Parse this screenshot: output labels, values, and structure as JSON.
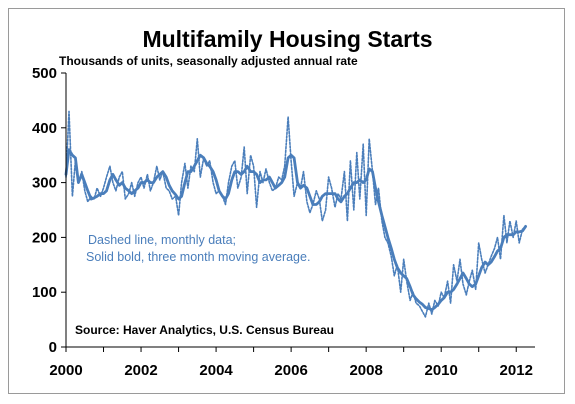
{
  "chart_data": {
    "type": "line",
    "title": "Multifamily Housing Starts",
    "subtitle": "Thousands of units, seasonally adjusted annual rate",
    "annotations": [
      "Dashed line, monthly data;",
      "Solid bold, three month moving average."
    ],
    "source": "Source:  Haver Analytics, U.S. Census Bureau",
    "xlim": [
      2000,
      2012.5
    ],
    "ylim": [
      0,
      500
    ],
    "x_ticks": [
      {
        "value": 2000,
        "label": "2000"
      },
      {
        "value": 2002,
        "label": "2002"
      },
      {
        "value": 2004,
        "label": "2004"
      },
      {
        "value": 2006,
        "label": "2006"
      },
      {
        "value": 2008,
        "label": "2008"
      },
      {
        "value": 2010,
        "label": "2010"
      },
      {
        "value": 2012,
        "label": "2012"
      }
    ],
    "y_ticks": [
      {
        "value": 0,
        "label": "0"
      },
      {
        "value": 100,
        "label": "100"
      },
      {
        "value": 200,
        "label": "200"
      },
      {
        "value": 300,
        "label": "300"
      },
      {
        "value": 400,
        "label": "400"
      },
      {
        "value": 500,
        "label": "500"
      }
    ],
    "grid": false,
    "colors": {
      "series": "#4a7ebb",
      "axis": "#000000",
      "frame": "#9a9a9a"
    },
    "x": [
      2000.0,
      2000.08,
      2000.17,
      2000.25,
      2000.33,
      2000.42,
      2000.5,
      2000.58,
      2000.67,
      2000.75,
      2000.83,
      2000.92,
      2001.0,
      2001.08,
      2001.17,
      2001.25,
      2001.33,
      2001.42,
      2001.5,
      2001.58,
      2001.67,
      2001.75,
      2001.83,
      2001.92,
      2002.0,
      2002.08,
      2002.17,
      2002.25,
      2002.33,
      2002.42,
      2002.5,
      2002.58,
      2002.67,
      2002.75,
      2002.83,
      2002.92,
      2003.0,
      2003.08,
      2003.17,
      2003.25,
      2003.33,
      2003.42,
      2003.5,
      2003.58,
      2003.67,
      2003.75,
      2003.83,
      2003.92,
      2004.0,
      2004.08,
      2004.17,
      2004.25,
      2004.33,
      2004.42,
      2004.5,
      2004.58,
      2004.67,
      2004.75,
      2004.83,
      2004.92,
      2005.0,
      2005.08,
      2005.17,
      2005.25,
      2005.33,
      2005.42,
      2005.5,
      2005.58,
      2005.67,
      2005.75,
      2005.83,
      2005.92,
      2006.0,
      2006.08,
      2006.17,
      2006.25,
      2006.33,
      2006.42,
      2006.5,
      2006.58,
      2006.67,
      2006.75,
      2006.83,
      2006.92,
      2007.0,
      2007.08,
      2007.17,
      2007.25,
      2007.33,
      2007.42,
      2007.5,
      2007.58,
      2007.67,
      2007.75,
      2007.83,
      2007.92,
      2008.0,
      2008.08,
      2008.17,
      2008.25,
      2008.33,
      2008.42,
      2008.5,
      2008.58,
      2008.67,
      2008.75,
      2008.83,
      2008.92,
      2009.0,
      2009.08,
      2009.17,
      2009.25,
      2009.33,
      2009.42,
      2009.5,
      2009.58,
      2009.67,
      2009.75,
      2009.83,
      2009.92,
      2010.0,
      2010.08,
      2010.17,
      2010.25,
      2010.33,
      2010.42,
      2010.5,
      2010.58,
      2010.67,
      2010.75,
      2010.83,
      2010.92,
      2011.0,
      2011.08,
      2011.17,
      2011.25,
      2011.33,
      2011.42,
      2011.5,
      2011.58,
      2011.67,
      2011.75,
      2011.83,
      2011.92,
      2012.0,
      2012.08,
      2012.17,
      2012.25
    ],
    "series": [
      {
        "style": "dashed-monthly",
        "values": [
          310,
          430,
          275,
          340,
          300,
          320,
          285,
          265,
          275,
          270,
          290,
          275,
          290,
          310,
          330,
          300,
          285,
          310,
          320,
          270,
          280,
          300,
          275,
          300,
          310,
          290,
          315,
          285,
          300,
          330,
          305,
          320,
          290,
          285,
          270,
          275,
          240,
          300,
          335,
          290,
          330,
          320,
          380,
          310,
          345,
          330,
          340,
          300,
          280,
          285,
          275,
          260,
          300,
          330,
          340,
          290,
          310,
          365,
          280,
          350,
          330,
          255,
          320,
          300,
          325,
          300,
          285,
          290,
          310,
          305,
          330,
          420,
          340,
          275,
          300,
          290,
          320,
          265,
          245,
          260,
          285,
          270,
          230,
          250,
          310,
          290,
          255,
          280,
          270,
          320,
          230,
          340,
          250,
          355,
          270,
          370,
          240,
          380,
          320,
          260,
          290,
          230,
          200,
          190,
          165,
          130,
          150,
          100,
          160,
          120,
          85,
          100,
          80,
          75,
          65,
          55,
          80,
          60,
          85,
          75,
          100,
          90,
          120,
          80,
          150,
          120,
          160,
          115,
          95,
          120,
          140,
          105,
          190,
          160,
          135,
          150,
          165,
          180,
          200,
          160,
          240,
          190,
          230,
          200,
          230,
          190,
          215,
          220
        ]
      },
      {
        "style": "solid-3-month-moving-average",
        "values": [
          315,
          360,
          350,
          345,
          300,
          315,
          300,
          285,
          270,
          272,
          275,
          280,
          280,
          285,
          305,
          315,
          305,
          295,
          300,
          290,
          285,
          280,
          285,
          290,
          300,
          300,
          305,
          300,
          300,
          310,
          315,
          320,
          310,
          295,
          285,
          278,
          270,
          275,
          300,
          320,
          320,
          330,
          340,
          350,
          345,
          335,
          330,
          320,
          305,
          285,
          275,
          270,
          280,
          305,
          320,
          320,
          315,
          320,
          330,
          320,
          320,
          315,
          300,
          305,
          305,
          310,
          300,
          290,
          295,
          300,
          310,
          345,
          350,
          345,
          300,
          290,
          295,
          290,
          275,
          260,
          260,
          265,
          275,
          280,
          280,
          280,
          280,
          270,
          265,
          275,
          280,
          290,
          300,
          300,
          305,
          300,
          305,
          325,
          320,
          290,
          265,
          240,
          220,
          200,
          180,
          160,
          145,
          135,
          130,
          125,
          110,
          95,
          88,
          82,
          78,
          72,
          70,
          68,
          72,
          78,
          85,
          90,
          100,
          100,
          105,
          115,
          125,
          135,
          125,
          115,
          110,
          115,
          130,
          145,
          155,
          150,
          155,
          165,
          175,
          180,
          200,
          205,
          205,
          205,
          210,
          210,
          212,
          220
        ]
      }
    ]
  }
}
